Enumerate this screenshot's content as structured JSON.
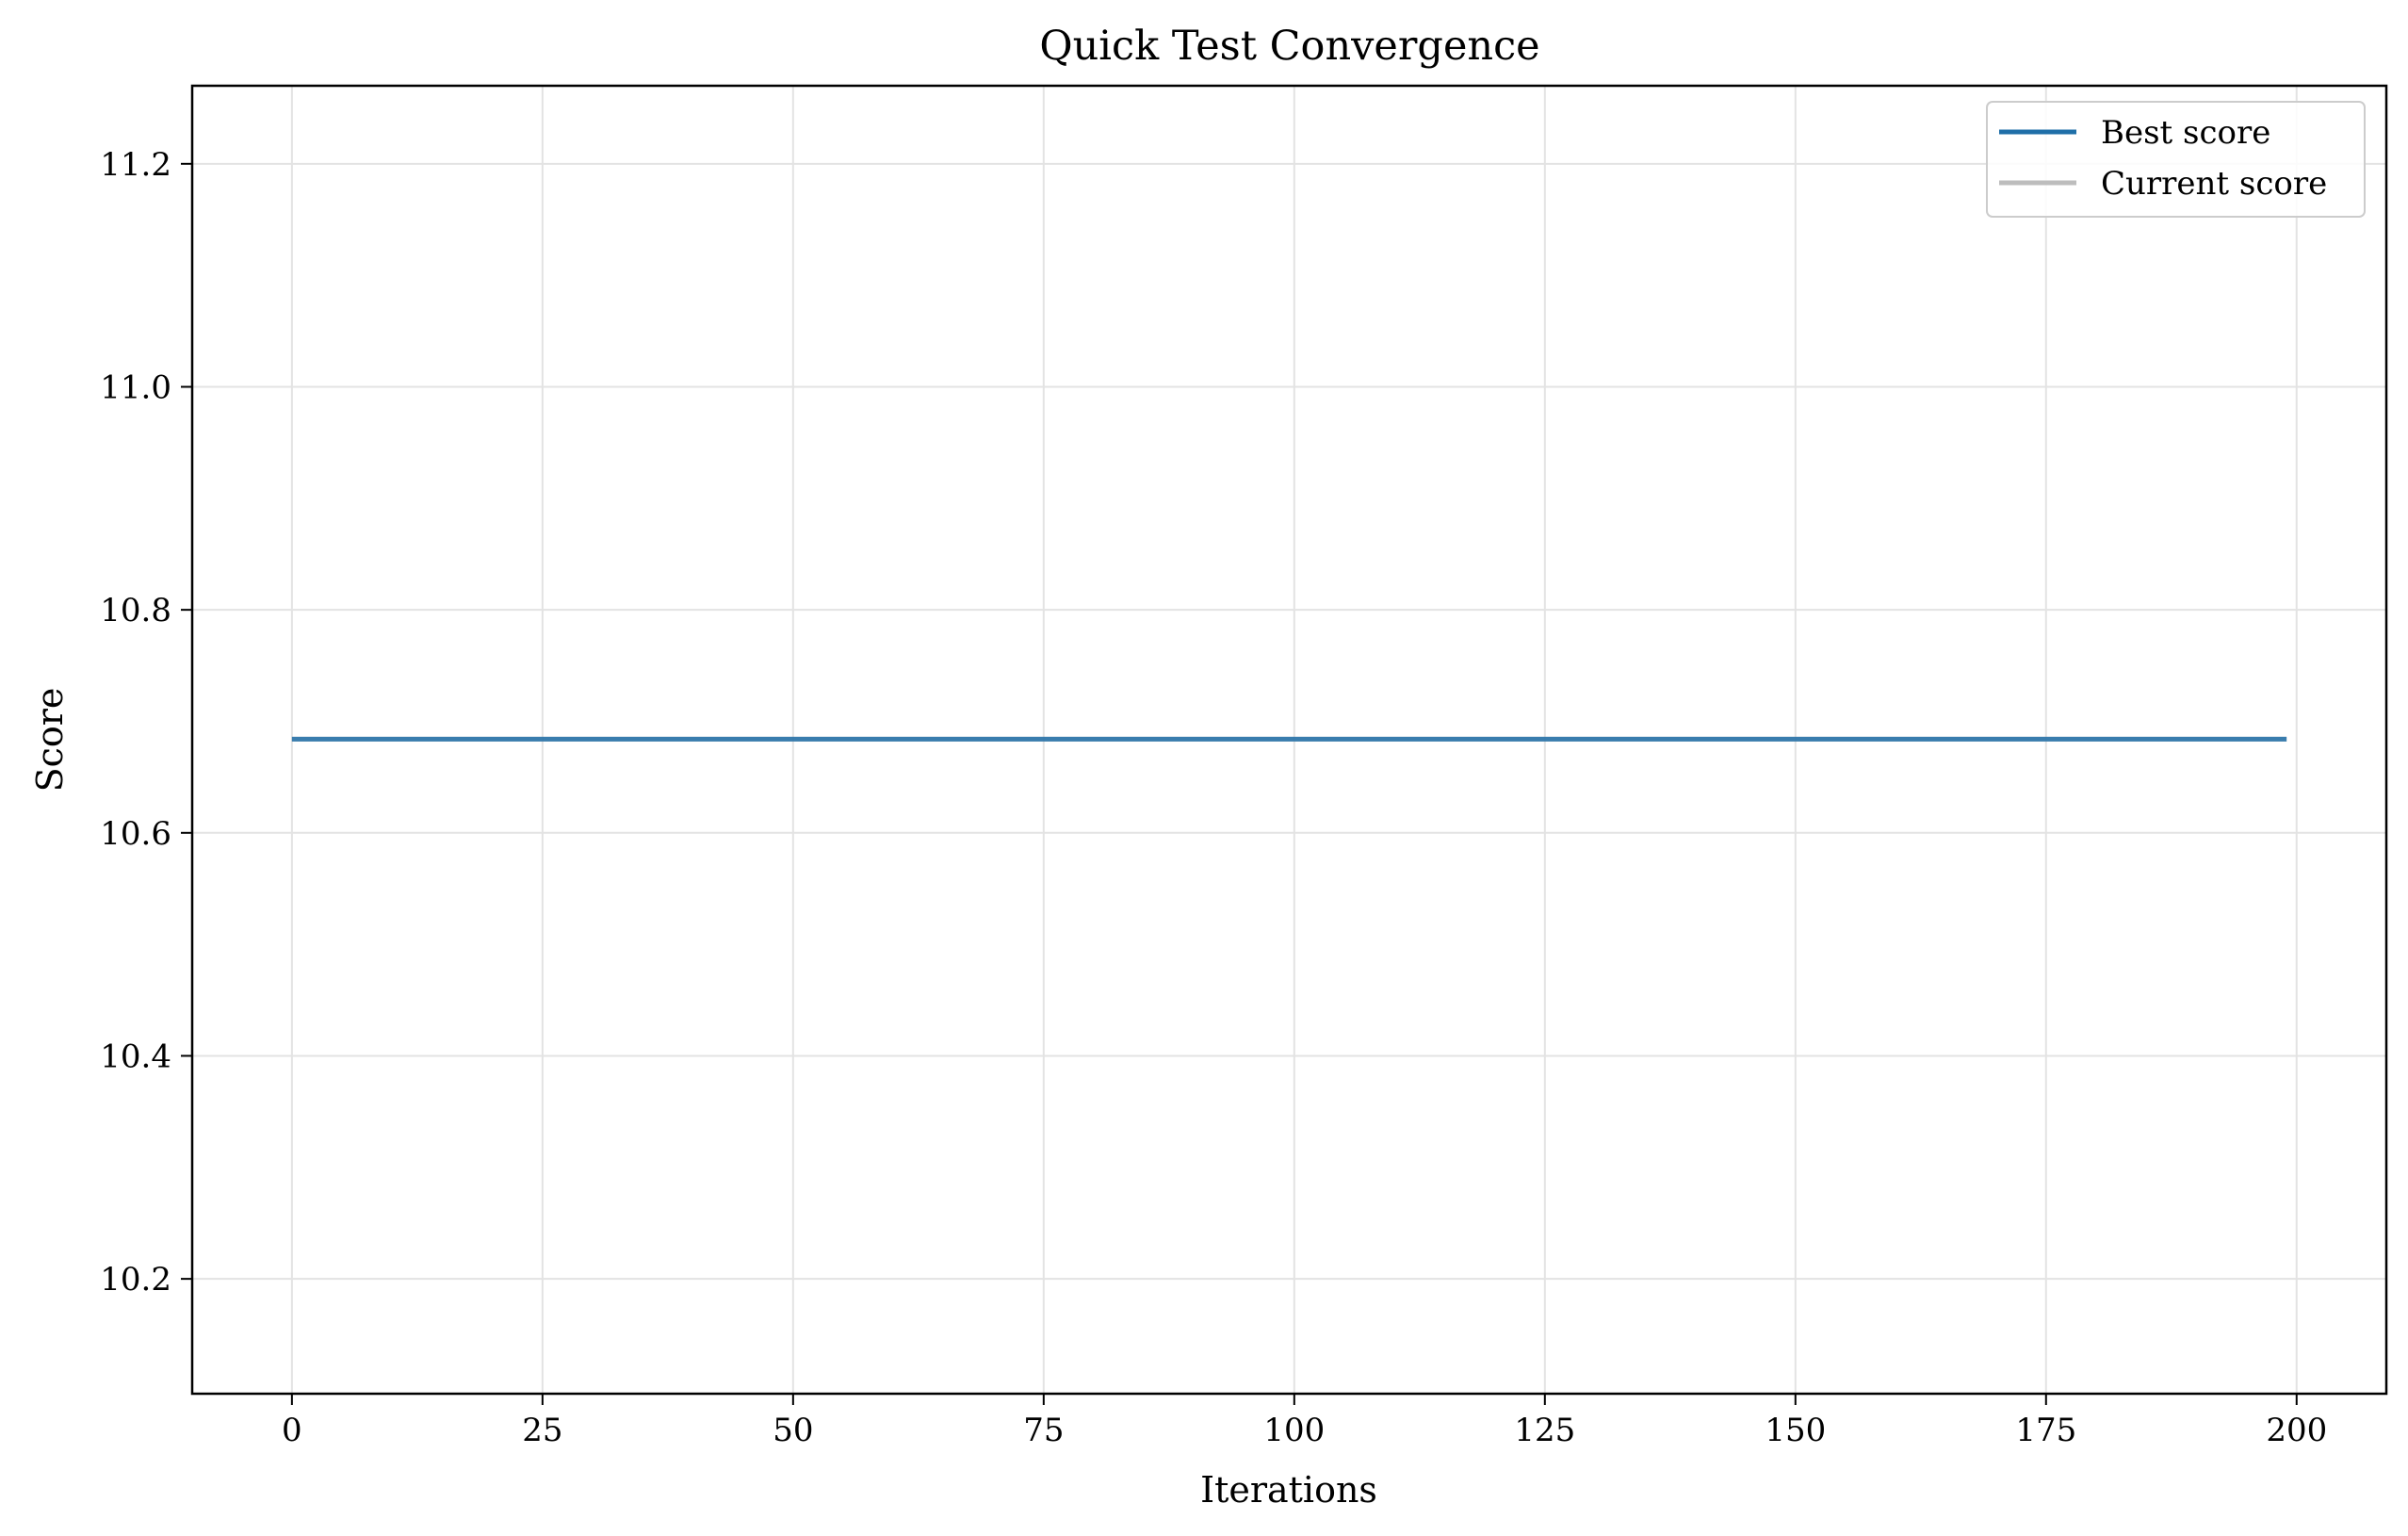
{
  "chart_data": {
    "type": "line",
    "title": "Quick Test Convergence",
    "xlabel": "Iterations",
    "ylabel": "Score",
    "xlim": [
      -9.95,
      208.95
    ],
    "ylim": [
      10.097,
      11.27
    ],
    "xticks": [
      0,
      25,
      50,
      75,
      100,
      125,
      150,
      175,
      200
    ],
    "xtick_labels": [
      "0",
      "25",
      "50",
      "75",
      "100",
      "125",
      "150",
      "175",
      "200"
    ],
    "yticks": [
      10.2,
      10.4,
      10.6,
      10.8,
      11.0,
      11.2
    ],
    "ytick_labels": [
      "10.2",
      "10.4",
      "10.6",
      "10.8",
      "11.0",
      "11.2"
    ],
    "grid": true,
    "legend_position": "top-right",
    "series": [
      {
        "name": "Best score",
        "color": "#1f6fa8",
        "x": [
          0,
          199
        ],
        "values": [
          10.684,
          10.684
        ]
      },
      {
        "name": "Current score",
        "color": "#bdbdbd",
        "x": [
          0,
          199
        ],
        "values": [
          10.684,
          10.684
        ]
      }
    ]
  }
}
